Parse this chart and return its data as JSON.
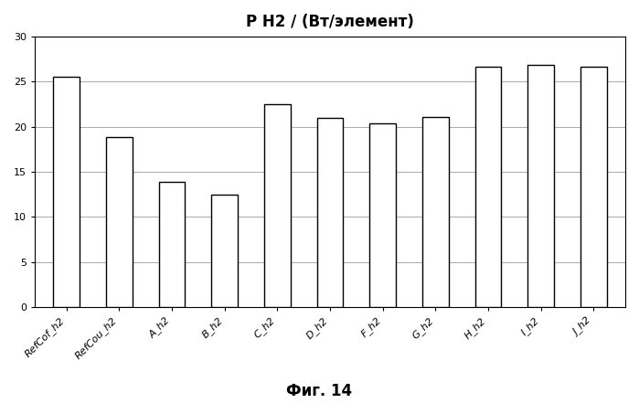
{
  "categories": [
    "RefCof_h2",
    "RefCou_h2",
    "A_h2",
    "B_h2",
    "C_h2",
    "D_h2",
    "F_h2",
    "G_h2",
    "H_h2",
    "I_h2",
    "J_h2"
  ],
  "values": [
    25.6,
    18.9,
    13.9,
    12.5,
    22.5,
    21.0,
    20.4,
    21.1,
    26.7,
    26.9,
    26.7
  ],
  "bar_color": "#ffffff",
  "bar_edgecolor": "#000000",
  "title": "P H2 / (Вт/элемент)",
  "ylim": [
    0,
    30
  ],
  "yticks": [
    0,
    5,
    10,
    15,
    20,
    25,
    30
  ],
  "grid_color": "#aaaaaa",
  "background_color": "#ffffff",
  "fig_caption": "Фиг. 14",
  "title_fontsize": 12,
  "tick_fontsize": 8,
  "caption_fontsize": 12,
  "bar_width": 0.5
}
